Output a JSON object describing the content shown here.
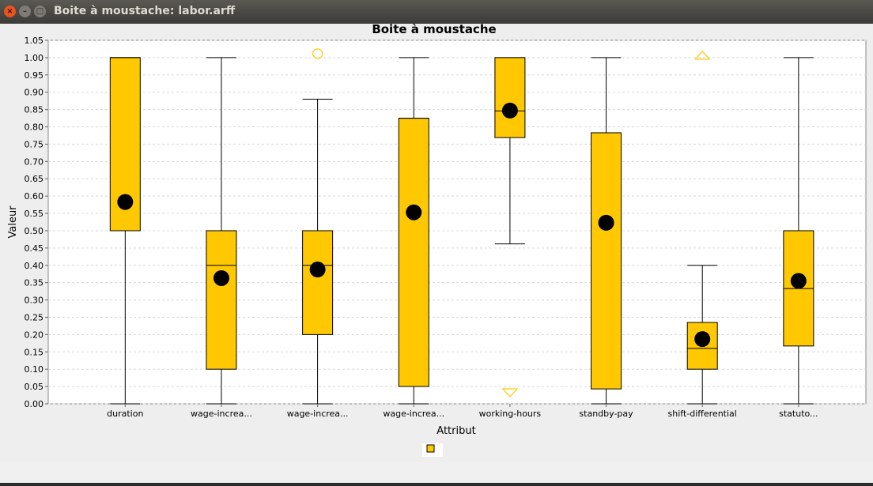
{
  "window": {
    "title": "Boite à moustache: labor.arff",
    "close_glyph": "×",
    "minimize_glyph": "–",
    "maximize_glyph": "□"
  },
  "chart_data": {
    "type": "boxplot",
    "title": "Boite à moustache",
    "xlabel": "Attribut",
    "ylabel": "Valeur",
    "ylim": [
      0,
      1.05
    ],
    "yticks": [
      0.0,
      0.05,
      0.1,
      0.15,
      0.2,
      0.25,
      0.3,
      0.35,
      0.4,
      0.45,
      0.5,
      0.55,
      0.6,
      0.65,
      0.7,
      0.75,
      0.8,
      0.85,
      0.9,
      0.95,
      1.0,
      1.05
    ],
    "grid": true,
    "legend": {
      "placement": "bottom-center",
      "label": ""
    },
    "colors": {
      "box": "#ffc800",
      "mean": "#000000",
      "outlier": "#ffc800",
      "grid": "#d8d8d8"
    },
    "categories": [
      "duration",
      "wage-increa...",
      "wage-increa...",
      "wage-increa...",
      "working-hours",
      "standby-pay",
      "shift-differential",
      "statuto..."
    ],
    "boxes": [
      {
        "min": 0.0,
        "q1": 0.5,
        "median": 1.0,
        "q3": 1.0,
        "max": 1.0,
        "mean": 0.583
      },
      {
        "min": 0.0,
        "q1": 0.1,
        "median": 0.4,
        "q3": 0.5,
        "max": 1.0,
        "mean": 0.363
      },
      {
        "min": 0.0,
        "q1": 0.2,
        "median": 0.4,
        "q3": 0.5,
        "max": 0.88,
        "mean": 0.388,
        "outliers": [
          {
            "value": 1.0,
            "shape": "circle"
          }
        ]
      },
      {
        "min": 0.0,
        "q1": 0.05,
        "median": 0.825,
        "q3": 0.825,
        "max": 1.0,
        "mean": 0.553
      },
      {
        "min": 0.462,
        "q1": 0.769,
        "median": 0.846,
        "q3": 1.0,
        "max": 1.0,
        "mean": 0.847,
        "outliers": [
          {
            "value": 0.0,
            "shape": "triangle-down"
          }
        ]
      },
      {
        "min": 0.0,
        "q1": 0.043,
        "median": 0.783,
        "q3": 0.783,
        "max": 1.0,
        "mean": 0.523
      },
      {
        "min": 0.0,
        "q1": 0.1,
        "median": 0.16,
        "q3": 0.235,
        "max": 0.4,
        "mean": 0.187,
        "outliers": [
          {
            "value": 1.0,
            "shape": "triangle-up"
          }
        ]
      },
      {
        "min": 0.0,
        "q1": 0.167,
        "median": 0.333,
        "q3": 0.5,
        "max": 1.0,
        "mean": 0.355
      }
    ]
  }
}
